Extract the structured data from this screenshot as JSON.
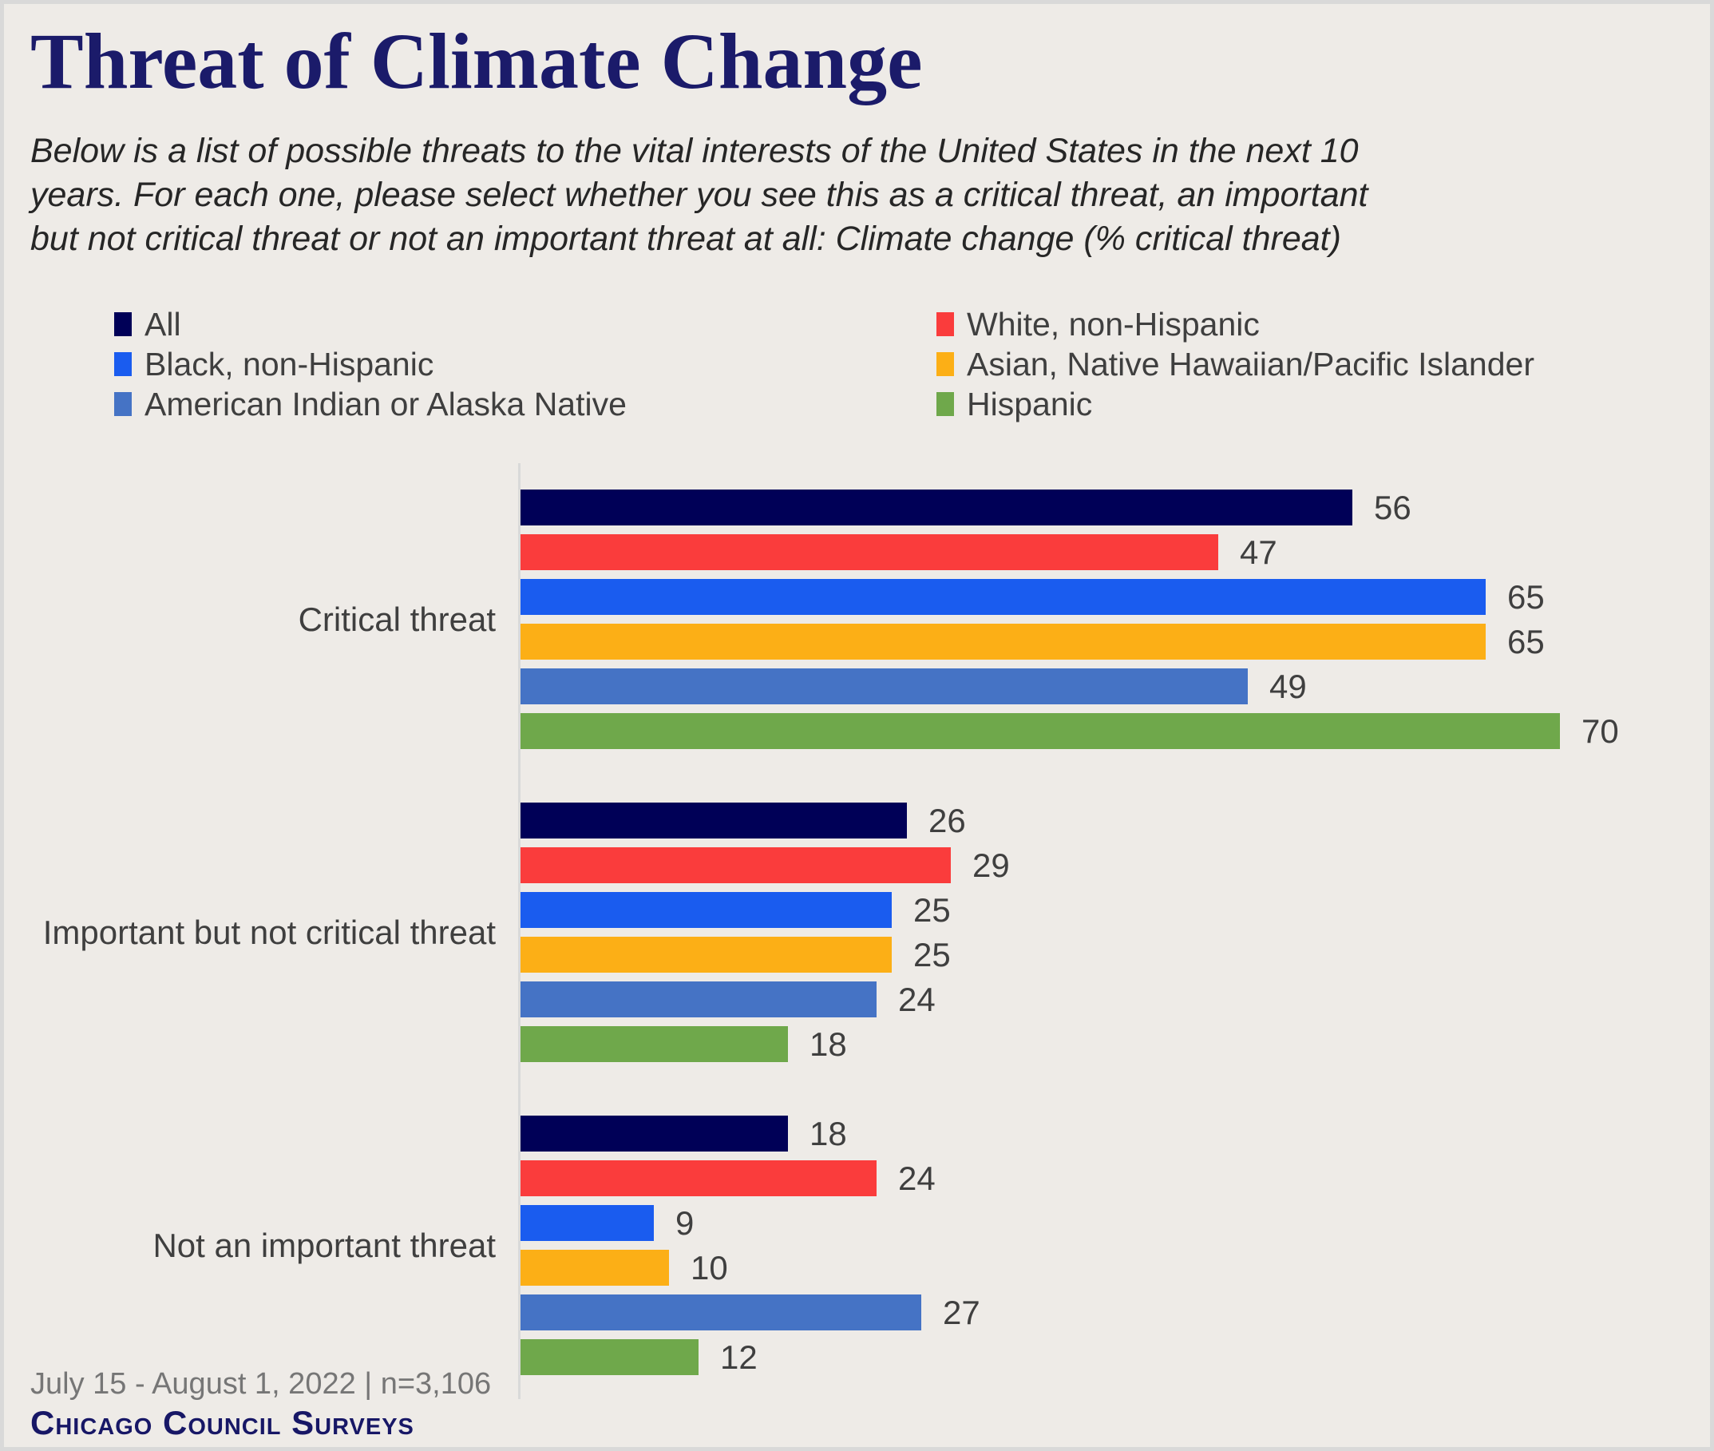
{
  "title": "Threat of Climate Change",
  "subtitle_lines": [
    "Below is a list of possible threats to the vital interests of the United States in the next 10",
    "years. For each one, please select whether you see this as a critical threat, an important",
    "but not critical threat or not an important threat at all: Climate change (% critical threat)"
  ],
  "chart_data": {
    "type": "bar",
    "orientation": "horizontal",
    "title": "Threat of Climate Change",
    "categories": [
      "Critical threat",
      "Important but not critical threat",
      "Not an important threat"
    ],
    "series": [
      {
        "name": "All",
        "color": "#000057",
        "values": [
          56,
          26,
          18
        ]
      },
      {
        "name": "White, non-Hispanic",
        "color": "#FA3C3C",
        "values": [
          47,
          29,
          24
        ]
      },
      {
        "name": "Black, non-Hispanic",
        "color": "#1A5CEF",
        "values": [
          65,
          25,
          9
        ]
      },
      {
        "name": "Asian, Native Hawaiian/Pacific Islander",
        "color": "#FCAF16",
        "values": [
          65,
          25,
          10
        ]
      },
      {
        "name": "American Indian or Alaska Native",
        "color": "#4573C5",
        "values": [
          49,
          24,
          27
        ]
      },
      {
        "name": "Hispanic",
        "color": "#6FA84B",
        "values": [
          70,
          18,
          12
        ]
      }
    ],
    "xlim": [
      0,
      80
    ],
    "value_labels": true,
    "legend_position": "top",
    "grid": false
  },
  "footer": {
    "source_line": "July 15 - August 1, 2022 | n=3,106",
    "brand": "Chicago Council Surveys"
  },
  "colors": {
    "background": "#EEEBE7",
    "border": "#D9D9D9",
    "title_navy": "#1B1B6A",
    "axis_gray": "#D9D9D9",
    "text_gray": "#3F3F3F",
    "source_gray": "#767676"
  }
}
